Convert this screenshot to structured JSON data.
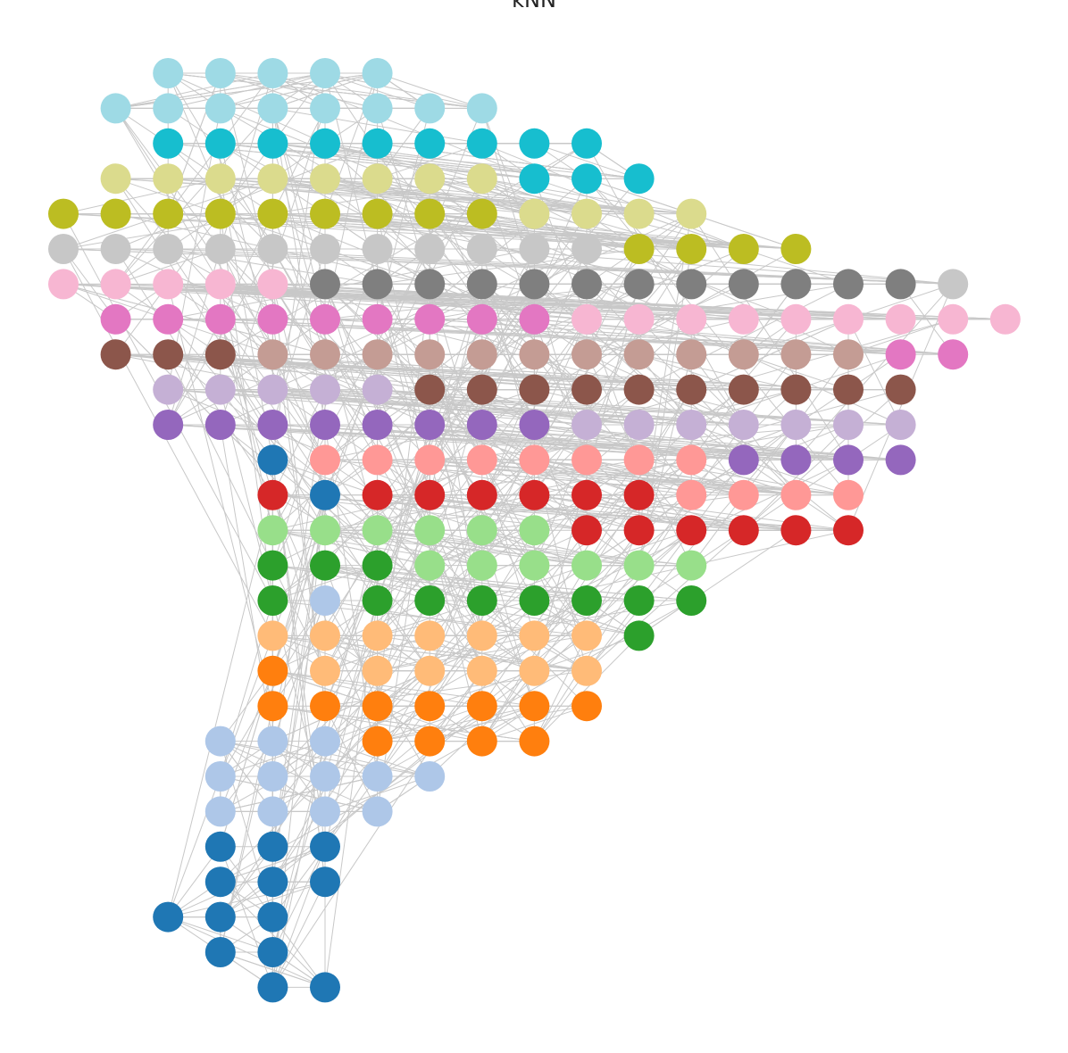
{
  "title": "kNN"
}
